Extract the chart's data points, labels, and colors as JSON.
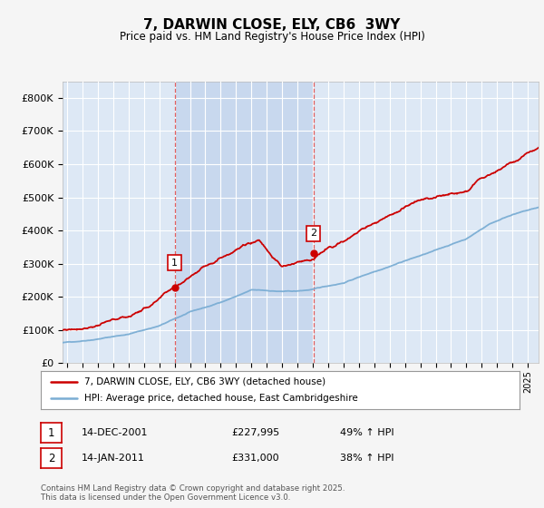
{
  "title": "7, DARWIN CLOSE, ELY, CB6  3WY",
  "subtitle": "Price paid vs. HM Land Registry's House Price Index (HPI)",
  "ylim": [
    0,
    850000
  ],
  "yticks": [
    0,
    100000,
    200000,
    300000,
    400000,
    500000,
    600000,
    700000,
    800000
  ],
  "ytick_labels": [
    "£0",
    "£100K",
    "£200K",
    "£300K",
    "£400K",
    "£500K",
    "£600K",
    "£700K",
    "£800K"
  ],
  "xmin": 1994.7,
  "xmax": 2025.7,
  "fig_bg_color": "#f5f5f5",
  "plot_bg_color": "#dde8f5",
  "highlight_bg_color": "#c8d8ee",
  "grid_color": "#ffffff",
  "red_line_color": "#cc0000",
  "blue_line_color": "#7aadd4",
  "vline_color": "#dd4444",
  "marker1_x": 2002.0,
  "marker1_y": 227995,
  "marker2_x": 2011.05,
  "marker2_y": 331000,
  "vline1_x": 2002.0,
  "vline2_x": 2011.05,
  "legend1": "7, DARWIN CLOSE, ELY, CB6 3WY (detached house)",
  "legend2": "HPI: Average price, detached house, East Cambridgeshire",
  "annotation1_label": "1",
  "annotation1_date": "14-DEC-2001",
  "annotation1_price": "£227,995",
  "annotation1_hpi": "49% ↑ HPI",
  "annotation2_label": "2",
  "annotation2_date": "14-JAN-2011",
  "annotation2_price": "£331,000",
  "annotation2_hpi": "38% ↑ HPI",
  "footer": "Contains HM Land Registry data © Crown copyright and database right 2025.\nThis data is licensed under the Open Government Licence v3.0."
}
